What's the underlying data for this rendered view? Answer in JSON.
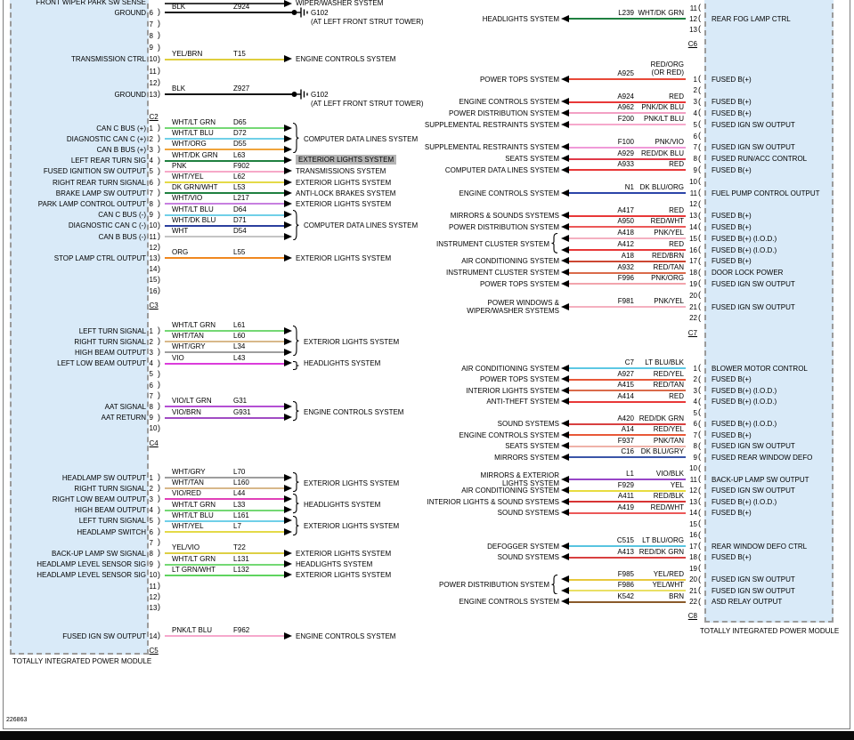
{
  "figure_number": "226863",
  "ui": {
    "module_fill": "#d9eaf8",
    "highlight": "#b5b5b5"
  },
  "wire_colors": {
    "BLK": "#141414",
    "YEL/BRN": "#dfce3e",
    "WHT/LT GRN": "#74d874",
    "WHT/LT BLU": "#70d0e8",
    "WHT/ORG": "#f0a43c",
    "WHT/DK GRN": "#1f8040",
    "PNK": "#f6a8c8",
    "WHT/YEL": "#e4da48",
    "DK GRN/WHT": "#1f8040",
    "WHT/VIO": "#c77fe0",
    "WHT/DK BLU": "#2b3f9e",
    "WHT": "#c4c4c4",
    "ORG": "#f08820",
    "WHT/TAN": "#d8b88a",
    "WHT/GRY": "#9e9e9e",
    "VIO": "#db3cdb",
    "VIO/LT GRN": "#b44fd4",
    "VIO/BRN": "#a14cc4",
    "VIO/RED": "#e040b8",
    "YEL/VIO": "#ddcf44",
    "LT GRN/WHT": "#5fd45f",
    "PNK/LT BLU": "#f6a8cc",
    "RED": "#e83838",
    "RED/ORG": "#e84838",
    "PNK/DK BLU": "#f2a0c4",
    "PNK/VIO": "#f09ad8",
    "RED/DK BLU": "#e03848",
    "DK BLU/ORG": "#2b44a8",
    "RED/WHT": "#ec5858",
    "PNK/YEL": "#f4b0c0",
    "RED/BRN": "#cc4632",
    "RED/TAN": "#da6a4a",
    "PNK/ORG": "#f2a4ac",
    "LT BLU/BLK": "#5cc8e4",
    "RED/YEL": "#e85838",
    "RED/DK GRN": "#d84040",
    "PNK/TAN": "#efb2a8",
    "DK BLU/GRY": "#3a55a8",
    "VIO/BLK": "#9846c8",
    "YEL": "#e8dc40",
    "RED/BLK": "#d83434",
    "LT BLU/ORG": "#58c4e0",
    "YEL/RED": "#e8c93c",
    "YEL/WHT": "#eae065",
    "BRN": "#8a5a2a"
  },
  "left_module": {
    "name": "TOTALLY INTEGRATED POWER MODULE",
    "top_partial_row": {
      "pin_label": "FRONT WIPER PARK SW SENSE",
      "dest": "WIPER/WASHER SYSTEM"
    },
    "sections": [
      {
        "connector": "C2",
        "rows": [
          {
            "pin": "6",
            "label": "GROUND",
            "wire": "BLK",
            "circuit": "Z924",
            "ground": "G102",
            "ground_note": "(AT LEFT FRONT STRUT TOWER)"
          },
          {
            "pin": "7"
          },
          {
            "pin": "8"
          },
          {
            "pin": "9"
          },
          {
            "pin": "10",
            "label": "TRANSMISSION CTRL",
            "wire": "YEL/BRN",
            "circuit": "T15",
            "dest": "ENGINE CONTROLS SYSTEM"
          },
          {
            "pin": "11"
          },
          {
            "pin": "12"
          },
          {
            "pin": "13",
            "label": "GROUND",
            "wire": "BLK",
            "circuit": "Z927",
            "ground": "G102",
            "ground_note": "(AT LEFT FRONT STRUT TOWER)"
          }
        ],
        "groups": []
      },
      {
        "connector": "C3",
        "rows": [
          {
            "pin": "1",
            "label": "CAN C BUS (+)",
            "wire": "WHT/LT GRN",
            "circuit": "D65"
          },
          {
            "pin": "2",
            "label": "DIAGNOSTIC CAN C (+)",
            "wire": "WHT/LT BLU",
            "circuit": "D72"
          },
          {
            "pin": "3",
            "label": "CAN B BUS (+)",
            "wire": "WHT/ORG",
            "circuit": "D55"
          },
          {
            "pin": "4",
            "label": "LEFT REAR TURN SIG",
            "wire": "WHT/DK GRN",
            "circuit": "L63",
            "dest": "EXTERIOR LIGHTS SYSTEM",
            "highlight": true
          },
          {
            "pin": "5",
            "label": "FUSED IGNITION SW OUTPUT",
            "wire": "PNK",
            "circuit": "F902",
            "dest": "TRANSMISSIONS SYSTEM"
          },
          {
            "pin": "6",
            "label": "RIGHT REAR TURN SIGNAL",
            "wire": "WHT/YEL",
            "circuit": "L62",
            "dest": "EXTERIOR LIGHTS SYSTEM"
          },
          {
            "pin": "7",
            "label": "BRAKE LAMP SW OUTPUT",
            "wire": "DK GRN/WHT",
            "circuit": "L53",
            "dest": "ANTI-LOCK BRAKES SYSTEM"
          },
          {
            "pin": "8",
            "label": "PARK LAMP CONTROL OUTPUT",
            "wire": "WHT/VIO",
            "circuit": "L217",
            "dest": "EXTERIOR LIGHTS SYSTEM"
          },
          {
            "pin": "9",
            "label": "CAN C BUS (-)",
            "wire": "WHT/LT BLU",
            "circuit": "D64"
          },
          {
            "pin": "10",
            "label": "DIAGNOSTIC CAN C (-)",
            "wire": "WHT/DK BLU",
            "circuit": "D71"
          },
          {
            "pin": "11",
            "label": "CAN B BUS (-)",
            "wire": "WHT",
            "circuit": "D54"
          },
          {
            "pin": "12"
          },
          {
            "pin": "13",
            "label": "STOP LAMP CTRL OUTPUT",
            "wire": "ORG",
            "circuit": "L55",
            "dest": "EXTERIOR LIGHTS SYSTEM"
          },
          {
            "pin": "14"
          },
          {
            "pin": "15"
          },
          {
            "pin": "16"
          }
        ],
        "groups": [
          {
            "from": "1",
            "to": "3",
            "dest": "COMPUTER DATA LINES SYSTEM"
          },
          {
            "from": "9",
            "to": "11",
            "dest": "COMPUTER DATA LINES SYSTEM"
          }
        ]
      },
      {
        "connector": "C4",
        "rows": [
          {
            "pin": "1",
            "label": "LEFT TURN SIGNAL",
            "wire": "WHT/LT GRN",
            "circuit": "L61"
          },
          {
            "pin": "2",
            "label": "RIGHT TURN SIGNAL",
            "wire": "WHT/TAN",
            "circuit": "L60"
          },
          {
            "pin": "3",
            "label": "HIGH BEAM OUTPUT",
            "wire": "WHT/GRY",
            "circuit": "L34"
          },
          {
            "pin": "4",
            "label": "LEFT LOW BEAM OUTPUT",
            "wire": "VIO",
            "circuit": "L43"
          },
          {
            "pin": "5"
          },
          {
            "pin": "6"
          },
          {
            "pin": "7"
          },
          {
            "pin": "8",
            "label": "AAT SIGNAL",
            "wire": "VIO/LT GRN",
            "circuit": "G31"
          },
          {
            "pin": "9",
            "label": "AAT RETURN",
            "wire": "VIO/BRN",
            "circuit": "G931"
          },
          {
            "pin": "10"
          }
        ],
        "groups": [
          {
            "from": "1",
            "to": "3",
            "dest": "EXTERIOR LIGHTS SYSTEM"
          },
          {
            "from": "4",
            "to": "4",
            "dest": "HEADLIGHTS SYSTEM"
          },
          {
            "from": "8",
            "to": "9",
            "dest": "ENGINE CONTROLS SYSTEM"
          }
        ]
      },
      {
        "connector": "C5",
        "rows": [
          {
            "pin": "1",
            "label": "HEADLAMP SW OUTPUT",
            "wire": "WHT/GRY",
            "circuit": "L70"
          },
          {
            "pin": "2",
            "label": "RIGHT TURN SIGNAL",
            "wire": "WHT/TAN",
            "circuit": "L160"
          },
          {
            "pin": "3",
            "label": "RIGHT LOW BEAM OUTPUT",
            "wire": "VIO/RED",
            "circuit": "L44"
          },
          {
            "pin": "4",
            "label": "HIGH BEAM OUTPUT",
            "wire": "WHT/LT GRN",
            "circuit": "L33"
          },
          {
            "pin": "5",
            "label": "LEFT TURN SIGNAL",
            "wire": "WHT/LT BLU",
            "circuit": "L161"
          },
          {
            "pin": "6",
            "label": "HEADLAMP SWITCH",
            "wire": "WHT/YEL",
            "circuit": "L7"
          },
          {
            "pin": "7"
          },
          {
            "pin": "8",
            "label": "BACK-UP LAMP SW SIGNAL",
            "wire": "YEL/VIO",
            "circuit": "T22",
            "dest": "EXTERIOR LIGHTS SYSTEM"
          },
          {
            "pin": "9",
            "label": "HEADLAMP LEVEL SENSOR SIG",
            "wire": "WHT/LT GRN",
            "circuit": "L131",
            "dest": "HEADLIGHTS SYSTEM"
          },
          {
            "pin": "10",
            "label": "HEADLAMP LEVEL SENSOR SIG",
            "wire": "LT GRN/WHT",
            "circuit": "L132",
            "dest": "EXTERIOR LIGHTS SYSTEM"
          },
          {
            "pin": "11"
          },
          {
            "pin": "12"
          },
          {
            "pin": "13"
          },
          {
            "pin": "14",
            "label": "FUSED IGN SW OUTPUT",
            "wire": "PNK/LT BLU",
            "circuit": "F962",
            "dest": "ENGINE CONTROLS SYSTEM"
          }
        ],
        "groups": [
          {
            "from": "1",
            "to": "2",
            "dest": "EXTERIOR LIGHTS SYSTEM"
          },
          {
            "from": "3",
            "to": "4",
            "dest": "HEADLIGHTS SYSTEM"
          },
          {
            "from": "5",
            "to": "6",
            "dest": "EXTERIOR LIGHTS SYSTEM"
          }
        ]
      }
    ]
  },
  "right_module": {
    "name": "TOTALLY INTEGRATED POWER MODULE",
    "sections": [
      {
        "connector": "C6",
        "rows": [
          {
            "pin": "11"
          },
          {
            "pin": "12",
            "system": "HEADLIGHTS SYSTEM",
            "circuit": "L239",
            "wire": "WHT/DK GRN",
            "label": "REAR FOG LAMP CTRL"
          },
          {
            "pin": "13"
          }
        ],
        "groups": []
      },
      {
        "connector": "C7",
        "rows": [
          {
            "pin": "1",
            "system": "POWER TOPS SYSTEM",
            "circuit": "A925",
            "wire": "RED/ORG",
            "wire_lines": [
              "RED/ORG",
              "(OR RED)"
            ],
            "label": "FUSED B(+)"
          },
          {
            "pin": "2"
          },
          {
            "pin": "3",
            "system": "ENGINE CONTROLS SYSTEM",
            "circuit": "A924",
            "wire": "RED",
            "label": "FUSED B(+)"
          },
          {
            "pin": "4",
            "system": "POWER DISTRIBUTION SYSTEM",
            "circuit": "A962",
            "wire": "PNK/DK BLU",
            "label": "FUSED B(+)"
          },
          {
            "pin": "5",
            "system": "SUPPLEMENTAL RESTRAINTS SYSTEM",
            "circuit": "F200",
            "wire": "PNK/LT BLU",
            "label": "FUSED IGN SW OUTPUT"
          },
          {
            "pin": "6"
          },
          {
            "pin": "7",
            "system": "SUPPLEMENTAL RESTRAINTS SYSTEM",
            "circuit": "F100",
            "wire": "PNK/VIO",
            "label": "FUSED IGN SW OUTPUT"
          },
          {
            "pin": "8",
            "system": "SEATS SYSTEM",
            "circuit": "A929",
            "wire": "RED/DK BLU",
            "label": "FUSED RUN/ACC CONTROL"
          },
          {
            "pin": "9",
            "system": "COMPUTER DATA LINES SYSTEM",
            "circuit": "A933",
            "wire": "RED",
            "label": "FUSED B(+)"
          },
          {
            "pin": "10"
          },
          {
            "pin": "11",
            "system": "ENGINE CONTROLS SYSTEM",
            "circuit": "N1",
            "wire": "DK BLU/ORG",
            "label": "FUEL PUMP CONTROL OUTPUT"
          },
          {
            "pin": "12"
          },
          {
            "pin": "13",
            "system": "MIRRORS & SOUNDS SYSTEMS",
            "circuit": "A417",
            "wire": "RED",
            "label": "FUSED B(+)"
          },
          {
            "pin": "14",
            "system": "POWER DISTRIBUTION SYSTEM",
            "circuit": "A950",
            "wire": "RED/WHT",
            "label": "FUSED B(+)"
          },
          {
            "pin": "15",
            "circuit": "A418",
            "wire": "PNK/YEL",
            "label": "FUSED B(+) (I.O.D.)"
          },
          {
            "pin": "16",
            "circuit": "A412",
            "wire": "RED",
            "label": "FUSED B(+) (I.O.D.)"
          },
          {
            "pin": "17",
            "system": "AIR CONDITIONING SYSTEM",
            "circuit": "A18",
            "wire": "RED/BRN",
            "label": "FUSED B(+)"
          },
          {
            "pin": "18",
            "system": "INSTRUMENT CLUSTER SYSTEM",
            "circuit": "A932",
            "wire": "RED/TAN",
            "label": "DOOR LOCK POWER"
          },
          {
            "pin": "19",
            "system": "POWER TOPS SYSTEM",
            "circuit": "F996",
            "wire": "PNK/ORG",
            "label": "FUSED IGN SW OUTPUT"
          },
          {
            "pin": "20"
          },
          {
            "pin": "21",
            "system_lines": [
              "POWER WINDOWS &",
              "WIPER/WASHER SYSTEMS"
            ],
            "circuit": "F981",
            "wire": "PNK/YEL",
            "label": "FUSED IGN SW OUTPUT"
          },
          {
            "pin": "22"
          }
        ],
        "groups": [
          {
            "from": "15",
            "to": "16",
            "system": "INSTRUMENT CLUSTER SYSTEM"
          }
        ]
      },
      {
        "connector": "C8",
        "rows": [
          {
            "pin": "1",
            "system": "AIR CONDITIONING SYSTEM",
            "circuit": "C7",
            "wire": "LT BLU/BLK",
            "label": "BLOWER MOTOR CONTROL"
          },
          {
            "pin": "2",
            "system": "POWER TOPS SYSTEM",
            "circuit": "A927",
            "wire": "RED/YEL",
            "label": "FUSED B(+)"
          },
          {
            "pin": "3",
            "system": "INTERIOR LIGHTS SYSTEM",
            "circuit": "A415",
            "wire": "RED/TAN",
            "label": "FUSED B(+) (I.O.D.)"
          },
          {
            "pin": "4",
            "system": "ANTI-THEFT SYSTEM",
            "circuit": "A414",
            "wire": "RED",
            "label": "FUSED B(+) (I.O.D.)"
          },
          {
            "pin": "5"
          },
          {
            "pin": "6",
            "system": "SOUND SYSTEMS",
            "circuit": "A420",
            "wire": "RED/DK GRN",
            "label": "FUSED B(+) (I.O.D.)"
          },
          {
            "pin": "7",
            "system": "ENGINE CONTROLS SYSTEM",
            "circuit": "A14",
            "wire": "RED/YEL",
            "label": "FUSED B(+)"
          },
          {
            "pin": "8",
            "system": "SEATS SYSTEM",
            "circuit": "F937",
            "wire": "PNK/TAN",
            "label": "FUSED IGN SW OUTPUT"
          },
          {
            "pin": "9",
            "system": "MIRRORS SYSTEM",
            "circuit": "C16",
            "wire": "DK BLU/GRY",
            "label": "FUSED REAR WINDOW DEFO"
          },
          {
            "pin": "10"
          },
          {
            "pin": "11",
            "system_lines": [
              "MIRRORS & EXTERIOR",
              "LIGHTS SYSTEM"
            ],
            "circuit": "L1",
            "wire": "VIO/BLK",
            "label": "BACK-UP LAMP SW OUTPUT"
          },
          {
            "pin": "12",
            "system": "AIR CONDITIONING SYSTEM",
            "circuit": "F929",
            "wire": "YEL",
            "label": "FUSED IGN SW OUTPUT"
          },
          {
            "pin": "13",
            "system": "INTERIOR LIGHTS & SOUND SYSTEMS",
            "circuit": "A411",
            "wire": "RED/BLK",
            "label": "FUSED B(+) (I.O.D.)"
          },
          {
            "pin": "14",
            "system": "SOUND SYSTEMS",
            "circuit": "A419",
            "wire": "RED/WHT",
            "label": "FUSED B(+)"
          },
          {
            "pin": "15"
          },
          {
            "pin": "16"
          },
          {
            "pin": "17",
            "system": "DEFOGGER SYSTEM",
            "circuit": "C515",
            "wire": "LT BLU/ORG",
            "label": "REAR WINDOW DEFO CTRL"
          },
          {
            "pin": "18",
            "system": "SOUND SYSTEMS",
            "circuit": "A413",
            "wire": "RED/DK GRN",
            "label": "FUSED B(+)"
          },
          {
            "pin": "19"
          },
          {
            "pin": "20",
            "circuit": "F985",
            "wire": "YEL/RED",
            "label": "FUSED IGN SW OUTPUT"
          },
          {
            "pin": "21",
            "circuit": "F986",
            "wire": "YEL/WHT",
            "label": "FUSED IGN SW OUTPUT"
          },
          {
            "pin": "22",
            "system": "ENGINE CONTROLS SYSTEM",
            "circuit": "K542",
            "wire": "BRN",
            "label": "ASD RELAY OUTPUT"
          }
        ],
        "groups": [
          {
            "from": "20",
            "to": "21",
            "system": "POWER DISTRIBUTION SYSTEM"
          }
        ]
      }
    ]
  }
}
